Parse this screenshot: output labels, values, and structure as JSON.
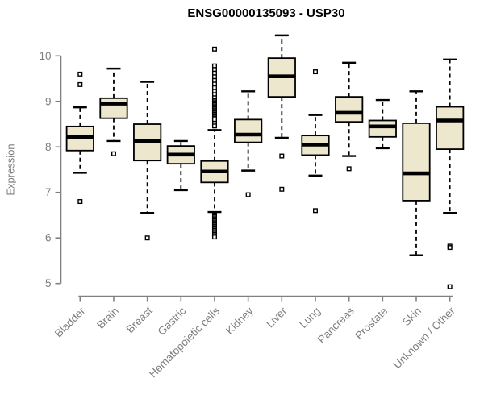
{
  "chart_data": {
    "type": "boxplot",
    "title": "ENSG00000135093 - USP30",
    "xlabel": "",
    "ylabel": "Expression",
    "ylim": [
      5,
      10
    ],
    "yticks": [
      5,
      6,
      7,
      8,
      9,
      10
    ],
    "grid": false,
    "legend": "none",
    "categories": [
      "Bladder",
      "Brain",
      "Breast",
      "Gastric",
      "Hematopoietic cells",
      "Kidney",
      "Liver",
      "Lung",
      "Pancreas",
      "Prostate",
      "Skin",
      "Unknown / Other"
    ],
    "boxes": [
      {
        "category": "Bladder",
        "whisker_low": 7.43,
        "q1": 7.92,
        "median": 8.22,
        "q3": 8.45,
        "whisker_high": 8.87,
        "outliers": [
          9.6,
          9.37,
          6.8
        ]
      },
      {
        "category": "Brain",
        "whisker_low": 8.13,
        "q1": 8.63,
        "median": 8.95,
        "q3": 9.07,
        "whisker_high": 9.72,
        "outliers": [
          7.85
        ]
      },
      {
        "category": "Breast",
        "whisker_low": 6.55,
        "q1": 7.7,
        "median": 8.13,
        "q3": 8.5,
        "whisker_high": 9.43,
        "outliers": [
          6.0
        ]
      },
      {
        "category": "Gastric",
        "whisker_low": 7.05,
        "q1": 7.63,
        "median": 7.83,
        "q3": 8.02,
        "whisker_high": 8.13,
        "outliers": []
      },
      {
        "category": "Hematopoietic cells",
        "whisker_low": 6.57,
        "q1": 7.22,
        "median": 7.46,
        "q3": 7.69,
        "whisker_high": 8.37,
        "outliers": [
          10.15,
          9.78,
          9.7,
          9.62,
          9.54,
          9.46,
          9.38,
          9.3,
          9.22,
          9.15,
          9.08,
          9.02,
          8.99,
          8.96,
          8.93,
          8.9,
          8.87,
          8.84,
          8.81,
          8.78,
          8.75,
          8.72,
          8.69,
          8.66,
          8.63,
          8.6,
          8.52,
          8.46,
          6.5,
          6.47,
          6.44,
          6.41,
          6.38,
          6.35,
          6.32,
          6.29,
          6.26,
          6.23,
          6.2,
          6.17,
          6.14,
          6.11,
          6.08,
          6.05,
          6.02
        ],
        "note": "many stacked outliers above and below whiskers"
      },
      {
        "category": "Kidney",
        "whisker_low": 7.48,
        "q1": 8.1,
        "median": 8.27,
        "q3": 8.6,
        "whisker_high": 9.22,
        "outliers": [
          6.95
        ]
      },
      {
        "category": "Liver",
        "whisker_low": 8.2,
        "q1": 9.1,
        "median": 9.55,
        "q3": 9.95,
        "whisker_high": 10.45,
        "outliers": [
          7.8,
          7.07
        ]
      },
      {
        "category": "Lung",
        "whisker_low": 7.37,
        "q1": 7.82,
        "median": 8.05,
        "q3": 8.25,
        "whisker_high": 8.7,
        "outliers": [
          9.65,
          6.6
        ]
      },
      {
        "category": "Pancreas",
        "whisker_low": 7.8,
        "q1": 8.55,
        "median": 8.75,
        "q3": 9.1,
        "whisker_high": 9.85,
        "outliers": [
          7.52
        ]
      },
      {
        "category": "Prostate",
        "whisker_low": 7.97,
        "q1": 8.22,
        "median": 8.45,
        "q3": 8.58,
        "whisker_high": 9.03,
        "outliers": []
      },
      {
        "category": "Skin",
        "whisker_low": 5.62,
        "q1": 6.82,
        "median": 7.42,
        "q3": 8.52,
        "whisker_high": 9.22,
        "outliers": []
      },
      {
        "category": "Unknown / Other",
        "whisker_low": 6.55,
        "q1": 7.95,
        "median": 8.58,
        "q3": 8.88,
        "whisker_high": 9.92,
        "outliers": [
          5.82,
          5.79,
          4.93
        ]
      }
    ],
    "colors": {
      "box_fill": "#EDE8CD",
      "box_border": "#000000",
      "median_line": "#000000",
      "whisker": "#000000",
      "outlier_stroke": "#000000",
      "outlier_fill": "#ffffff",
      "axis": "#808080",
      "tick_label": "#7e7e7e",
      "title": "#000000",
      "background": "#ffffff"
    }
  }
}
